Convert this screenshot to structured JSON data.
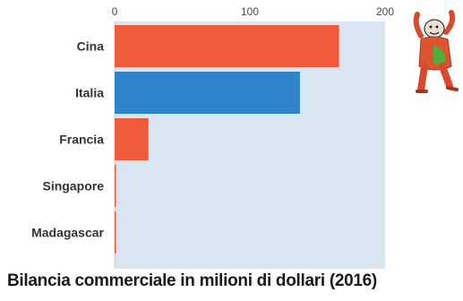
{
  "chart_data": {
    "type": "bar",
    "orientation": "horizontal",
    "categories": [
      "Cina",
      "Italia",
      "Francia",
      "Singapore",
      "Madagascar"
    ],
    "values": [
      166,
      137,
      25,
      1,
      1
    ],
    "xlim": [
      0,
      200
    ],
    "x_ticks": [
      "0",
      "100",
      "200"
    ],
    "x_tick_values": [
      0,
      100,
      200
    ],
    "x_axis_position": "top",
    "grid": false,
    "legend": "none",
    "title": "Bilancia commerciale in milioni di dollari (2016)",
    "xlabel": "",
    "ylabel": ""
  },
  "colors": {
    "plot_background": "#d9e5f1",
    "bar_default": "#ee5a3a",
    "bar_highlight": "#2f83cb",
    "highlight_category": "Italia",
    "tick_text": "#4a4a4a",
    "category_text": "#333333"
  },
  "decoration": {
    "icon": "cartoon-mascot-icon"
  }
}
